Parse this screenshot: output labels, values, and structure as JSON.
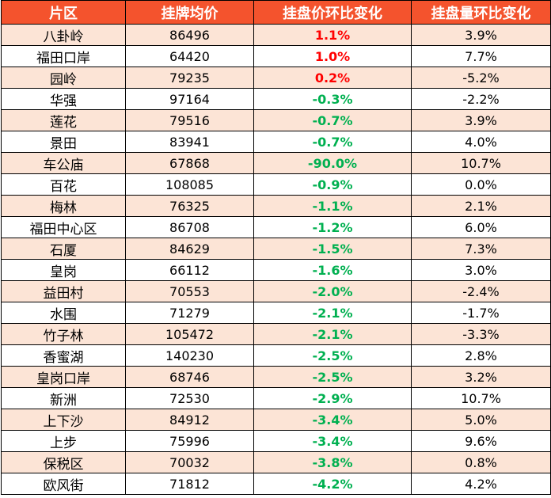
{
  "chart_data": {
    "type": "table",
    "columns": [
      "片区",
      "挂牌均价",
      "挂盘价环比变化",
      "挂盘量环比变化"
    ],
    "rows": [
      {
        "district": "八卦岭",
        "avg_price": "86496",
        "price_change": "1.1%",
        "volume_change": "3.9%"
      },
      {
        "district": "福田口岸",
        "avg_price": "64420",
        "price_change": "1.0%",
        "volume_change": "7.7%"
      },
      {
        "district": "园岭",
        "avg_price": "79235",
        "price_change": "0.2%",
        "volume_change": "-5.2%"
      },
      {
        "district": "华强",
        "avg_price": "97164",
        "price_change": "-0.3%",
        "volume_change": "-2.2%"
      },
      {
        "district": "莲花",
        "avg_price": "79516",
        "price_change": "-0.7%",
        "volume_change": "3.9%"
      },
      {
        "district": "景田",
        "avg_price": "83941",
        "price_change": "-0.7%",
        "volume_change": "4.0%"
      },
      {
        "district": "车公庙",
        "avg_price": "67868",
        "price_change": "-90.0%",
        "volume_change": "10.7%"
      },
      {
        "district": "百花",
        "avg_price": "108085",
        "price_change": "-0.9%",
        "volume_change": "0.0%"
      },
      {
        "district": "梅林",
        "avg_price": "76325",
        "price_change": "-1.1%",
        "volume_change": "2.1%"
      },
      {
        "district": "福田中心区",
        "avg_price": "86708",
        "price_change": "-1.2%",
        "volume_change": "6.0%"
      },
      {
        "district": "石厦",
        "avg_price": "84629",
        "price_change": "-1.5%",
        "volume_change": "7.3%"
      },
      {
        "district": "皇岗",
        "avg_price": "66112",
        "price_change": "-1.6%",
        "volume_change": "3.0%"
      },
      {
        "district": "益田村",
        "avg_price": "70553",
        "price_change": "-2.0%",
        "volume_change": "-2.4%"
      },
      {
        "district": "水围",
        "avg_price": "71279",
        "price_change": "-2.1%",
        "volume_change": "-1.7%"
      },
      {
        "district": "竹子林",
        "avg_price": "105472",
        "price_change": "-2.1%",
        "volume_change": "-3.3%"
      },
      {
        "district": "香蜜湖",
        "avg_price": "140230",
        "price_change": "-2.5%",
        "volume_change": "2.8%"
      },
      {
        "district": "皇岗口岸",
        "avg_price": "68746",
        "price_change": "-2.5%",
        "volume_change": "3.2%"
      },
      {
        "district": "新洲",
        "avg_price": "72530",
        "price_change": "-2.9%",
        "volume_change": "10.7%"
      },
      {
        "district": "上下沙",
        "avg_price": "84912",
        "price_change": "-3.4%",
        "volume_change": "5.0%"
      },
      {
        "district": "上步",
        "avg_price": "75996",
        "price_change": "-3.4%",
        "volume_change": "9.6%"
      },
      {
        "district": "保税区",
        "avg_price": "70032",
        "price_change": "-3.8%",
        "volume_change": "0.8%"
      },
      {
        "district": "欧风街",
        "avg_price": "71812",
        "price_change": "-4.2%",
        "volume_change": "4.2%"
      }
    ]
  },
  "colors": {
    "header_bg": "#f4532d",
    "header_text": "#ffffff",
    "band_row": "#fce4d6",
    "plain_row": "#ffffff",
    "positive": "#ff0000",
    "negative": "#00b050"
  }
}
